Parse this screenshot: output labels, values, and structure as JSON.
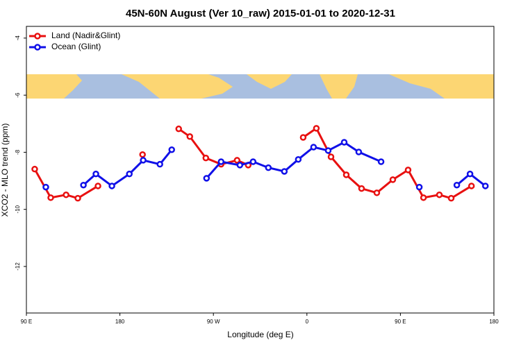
{
  "chart_data": {
    "type": "line",
    "title": "45N-60N August (Ver 10_raw)   2015-01-01 to 2020-12-31",
    "x_label": "Longitude (deg E)",
    "y_label": "XCO2 - MLO trend (ppm)",
    "xlim": [
      90,
      540
    ],
    "ylim": [
      -13.63,
      -3.59
    ],
    "xticks": [
      {
        "value": 90,
        "label": "90 E"
      },
      180,
      {
        "value": 270,
        "label": "90 W"
      },
      {
        "value": 360,
        "label": "0"
      },
      {
        "value": 450,
        "label": "90 E"
      },
      {
        "value": 540,
        "label": "180"
      }
    ],
    "yticks": [
      -12,
      -10,
      -8,
      -6,
      -4
    ],
    "legend": "top-left",
    "series": [
      {
        "name": "Land (Nadir&Glint)",
        "color": "#e81010",
        "x": [
          98,
          113.4,
          128.2,
          139.5,
          158.9,
          180,
          201.8,
          220,
          236.6,
          247.3,
          262.7,
          277.4,
          292.8,
          303.5,
          330,
          356.4,
          369.1,
          383.2,
          397.9,
          412.6,
          427.3,
          442.7,
          457.4,
          472.2,
          487.5,
          498.9,
          518.4
        ],
        "values": [
          -8.59,
          -9.59,
          -9.49,
          -9.61,
          -9.18,
          null,
          -8.08,
          null,
          -7.18,
          -7.45,
          -8.2,
          -8.42,
          -8.28,
          -8.45,
          null,
          -7.48,
          -7.16,
          -8.16,
          -8.79,
          -9.27,
          -9.42,
          -8.96,
          -8.62,
          -9.59,
          -9.49,
          -9.61,
          -9.18
        ]
      },
      {
        "name": "Ocean (Glint)",
        "color": "#1010e8",
        "x": [
          108.7,
          125,
          144.9,
          156.9,
          172.3,
          189.1,
          202.4,
          218.5,
          229.9,
          245,
          263.4,
          277.4,
          295.5,
          308.2,
          322.9,
          338.3,
          351.7,
          366.4,
          380.5,
          395.9,
          409.9,
          431.4,
          450,
          468.2,
          485,
          504.3,
          517,
          531.8
        ],
        "values": [
          -9.22,
          null,
          -9.15,
          -8.76,
          -9.18,
          -8.76,
          -8.28,
          -8.42,
          -7.91,
          null,
          -8.91,
          -8.33,
          -8.45,
          -8.33,
          -8.54,
          -8.67,
          -8.25,
          -7.82,
          -7.94,
          -7.65,
          -7.99,
          -8.33,
          null,
          -9.22,
          null,
          -9.15,
          -8.76,
          -9.18
        ]
      }
    ]
  }
}
